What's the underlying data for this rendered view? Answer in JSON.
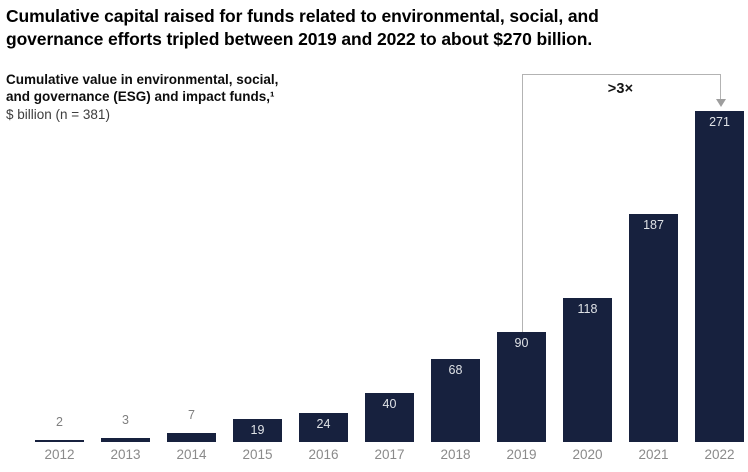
{
  "header": {
    "title": "Cumulative capital raised for funds related to environmental, social, and\ngovernance efforts tripled between 2019 and 2022 to about $270 billion.",
    "subtitle": "Cumulative value in environmental, social,\nand governance (ESG) and impact funds,¹",
    "unit_note": "$ billion (n = 381)"
  },
  "annotation": {
    "label": ">3×",
    "from_year": "2019",
    "to_year": "2022"
  },
  "colors": {
    "bar": "#17213e",
    "label_inside": "#dfe2e6",
    "label_outside": "#7f7f7f",
    "axis_text": "#8a8a8a",
    "bracket": "#b3b3b3",
    "arrow": "#9e9e9e"
  },
  "chart_data": {
    "type": "bar",
    "categories": [
      "2012",
      "2013",
      "2014",
      "2015",
      "2016",
      "2017",
      "2018",
      "2019",
      "2020",
      "2021",
      "2022"
    ],
    "values": [
      2,
      3,
      7,
      19,
      24,
      40,
      68,
      90,
      118,
      187,
      271
    ],
    "title": "Cumulative value in environmental, social, and governance (ESG) and impact funds, $ billion (n = 381)",
    "xlabel": "",
    "ylabel": "$ billion",
    "ylim": [
      0,
      280
    ],
    "grid": false,
    "legend": false,
    "annotations": [
      ">3× increase from 2019 (90) to 2022 (271)"
    ]
  }
}
